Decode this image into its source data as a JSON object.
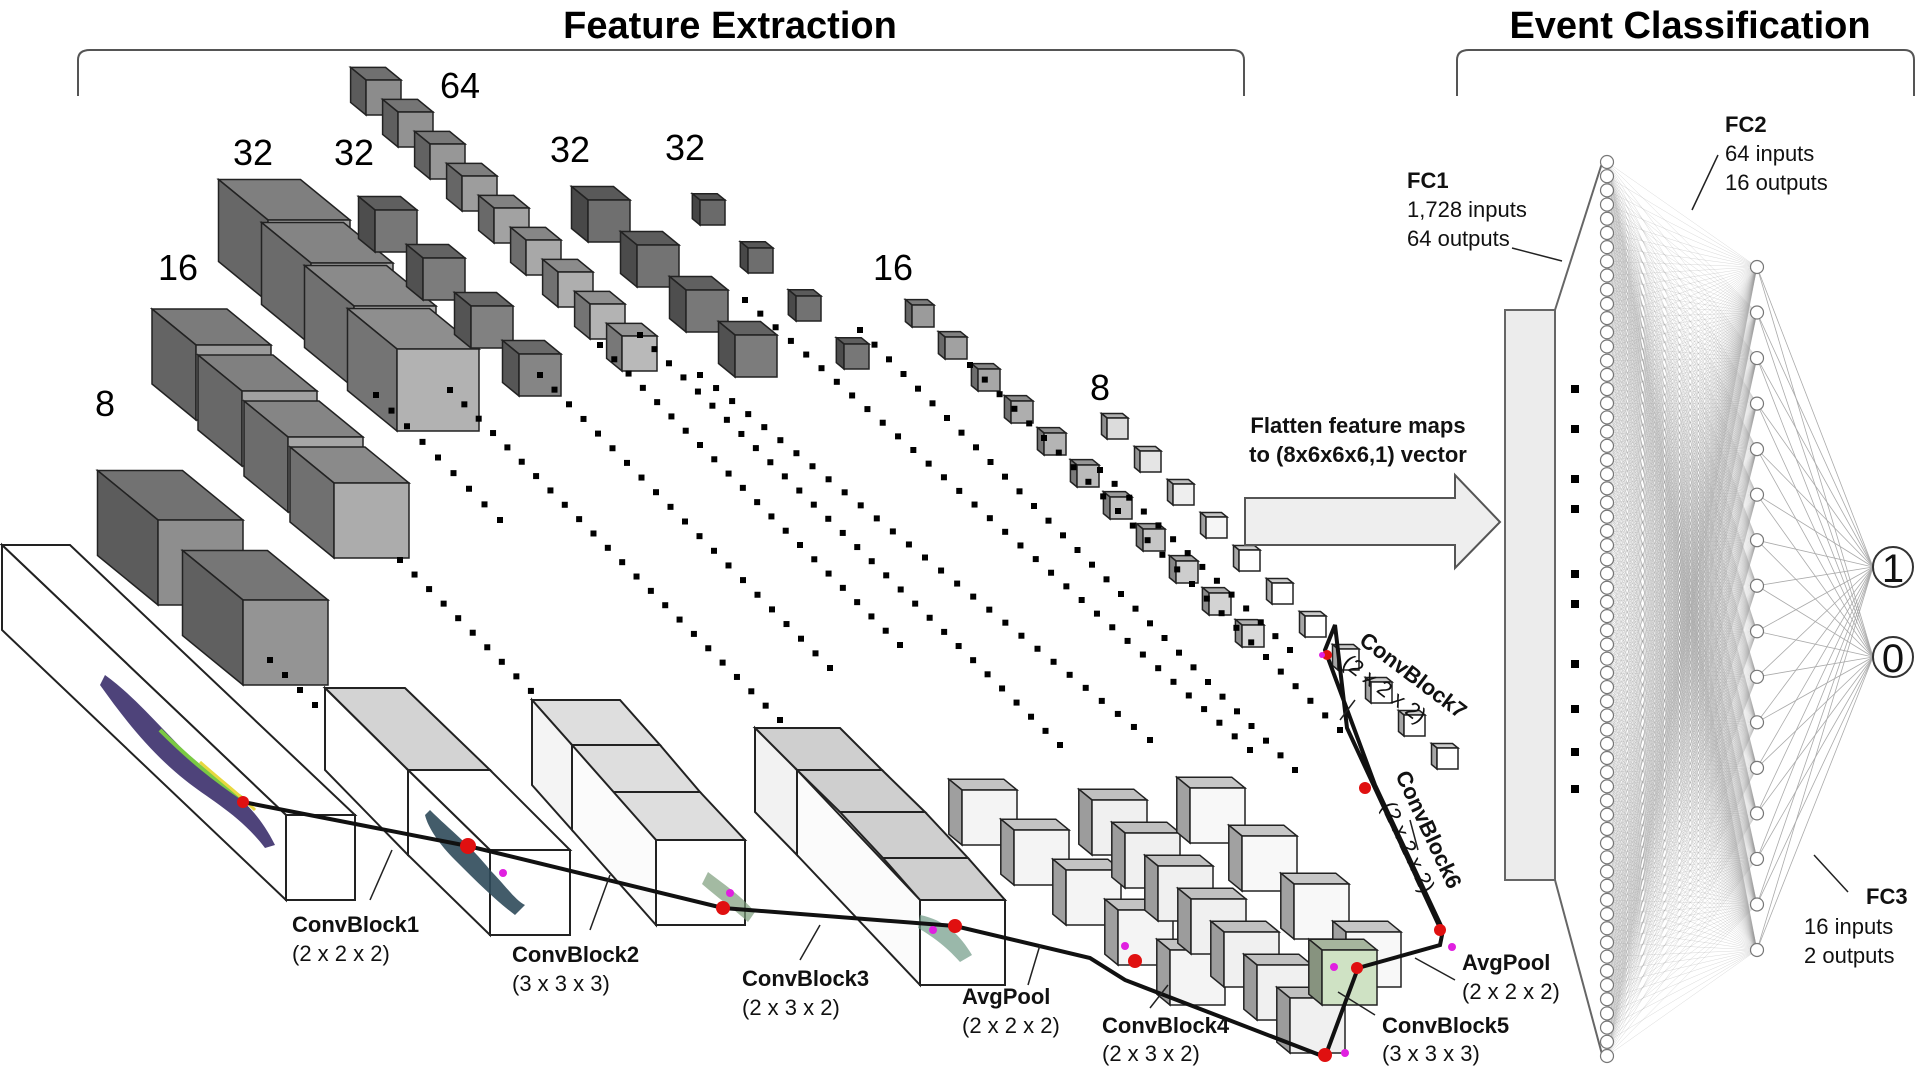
{
  "headers": {
    "feature_extraction": "Feature Extraction",
    "event_classification": "Event Classification"
  },
  "channel_counts": {
    "c8_left": "8",
    "c16_left": "16",
    "c32_a": "32",
    "c32_b": "32",
    "c64": "64",
    "c32_c": "32",
    "c32_d": "32",
    "c16_right": "16",
    "c8_right": "8"
  },
  "blocks": [
    {
      "name": "ConvBlock1",
      "kernel": "(2 x 2 x 2)"
    },
    {
      "name": "ConvBlock2",
      "kernel": "(3 x 3 x 3)"
    },
    {
      "name": "ConvBlock3",
      "kernel": "(2 x 3 x 2)"
    },
    {
      "name": "AvgPool",
      "kernel": "(2 x 2 x 2)"
    },
    {
      "name": "ConvBlock4",
      "kernel": "(2 x 3 x 2)"
    },
    {
      "name": "ConvBlock5",
      "kernel": "(3 x 3 x 3)"
    },
    {
      "name": "AvgPool",
      "kernel": "(2 x 2 x 2)"
    },
    {
      "name": "ConvBlock6",
      "kernel": "(2 x 2 x 2)"
    },
    {
      "name": "ConvBlock7",
      "kernel": "(2 x 2 x 2)"
    }
  ],
  "flatten": {
    "line1": "Flatten feature maps",
    "line2": "to (8x6x6x6,1) vector"
  },
  "fc": {
    "fc1": {
      "name": "FC1",
      "inputs": "1,728 inputs",
      "outputs": "64 outputs"
    },
    "fc2": {
      "name": "FC2",
      "inputs": "64 inputs",
      "outputs": "16 outputs"
    },
    "fc3": {
      "name": "FC3",
      "inputs": "16  inputs",
      "outputs": "2  outputs"
    }
  },
  "outputs": [
    "1",
    "0"
  ],
  "colors": {
    "dark_cube": "#555555",
    "mid_cube": "#8a8a8a",
    "light_cube": "#d6d6d6",
    "white_cube": "#ffffff",
    "highlight_red": "#e01010",
    "highlight_magenta": "#e020e0",
    "arrow_fill": "#eeeeee",
    "node_stroke": "#777777"
  }
}
